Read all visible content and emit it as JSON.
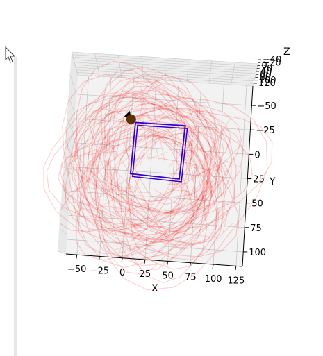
{
  "chart_data": {
    "type": "3d-wireframe",
    "x_axis": {
      "label": "X",
      "ticks": [
        -50,
        -25,
        0,
        25,
        50,
        75,
        100,
        125
      ]
    },
    "y_axis": {
      "label": "Y",
      "ticks": [
        -50,
        -25,
        0,
        25,
        50,
        75,
        100
      ]
    },
    "z_axis": {
      "label": "Z",
      "ticks": [
        -40,
        -20,
        0,
        20,
        40,
        60,
        80,
        100,
        120
      ],
      "tick_text": [
        "−40",
        "−20",
        "0",
        "20",
        "40",
        "60",
        "80",
        "100",
        "120"
      ]
    },
    "grid": true,
    "colors": {
      "mesh": "#ff0000",
      "box": "#3300cc",
      "marker": "#5a3300",
      "pane": "#f2f2f2"
    },
    "annotations": {
      "marker": {
        "x": 0,
        "y": -28
      },
      "box_corners": [
        [
          5,
          -25
        ],
        [
          60,
          -25
        ],
        [
          57,
          30
        ],
        [
          3,
          28
        ]
      ]
    }
  }
}
